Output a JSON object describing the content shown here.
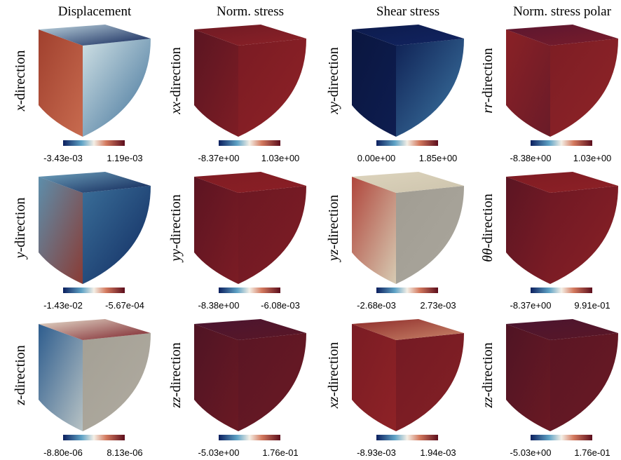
{
  "columns": [
    "Displacement",
    "Norm. stress",
    "Shear stress",
    "Norm. stress polar"
  ],
  "rows": [
    [
      {
        "symbol": "x",
        "suffix": "-direction",
        "min": "-3.43e-03",
        "max": "1.19e-03"
      },
      {
        "symbol": "xx",
        "suffix": "-direction",
        "min": "-8.37e+00",
        "max": "1.03e+00"
      },
      {
        "symbol": "xy",
        "suffix": "-direction",
        "min": "0.00e+00",
        "max": "1.85e+00"
      },
      {
        "symbol": "rr",
        "suffix": "-direction",
        "min": "-8.38e+00",
        "max": "1.03e+00"
      }
    ],
    [
      {
        "symbol": "y",
        "suffix": "-direction",
        "min": "-1.43e-02",
        "max": "-5.67e-04"
      },
      {
        "symbol": "yy",
        "suffix": "-direction",
        "min": "-8.38e+00",
        "max": "-6.08e-03"
      },
      {
        "symbol": "yz",
        "suffix": "-direction",
        "min": "-2.68e-03",
        "max": "2.73e-03"
      },
      {
        "symbol": "θθ",
        "suffix": "-direction",
        "min": "-8.37e+00",
        "max": "9.91e-01"
      }
    ],
    [
      {
        "symbol": "z",
        "suffix": "-direction",
        "min": "-8.80e-06",
        "max": "8.13e-06"
      },
      {
        "symbol": "zz",
        "suffix": "-direction",
        "min": "-5.03e+00",
        "max": "1.76e-01"
      },
      {
        "symbol": "xz",
        "suffix": "-direction",
        "min": "-8.93e-03",
        "max": "1.94e-03"
      },
      {
        "symbol": "zz",
        "suffix": "-direction",
        "min": "-5.03e+00",
        "max": "1.76e-01"
      }
    ]
  ]
}
